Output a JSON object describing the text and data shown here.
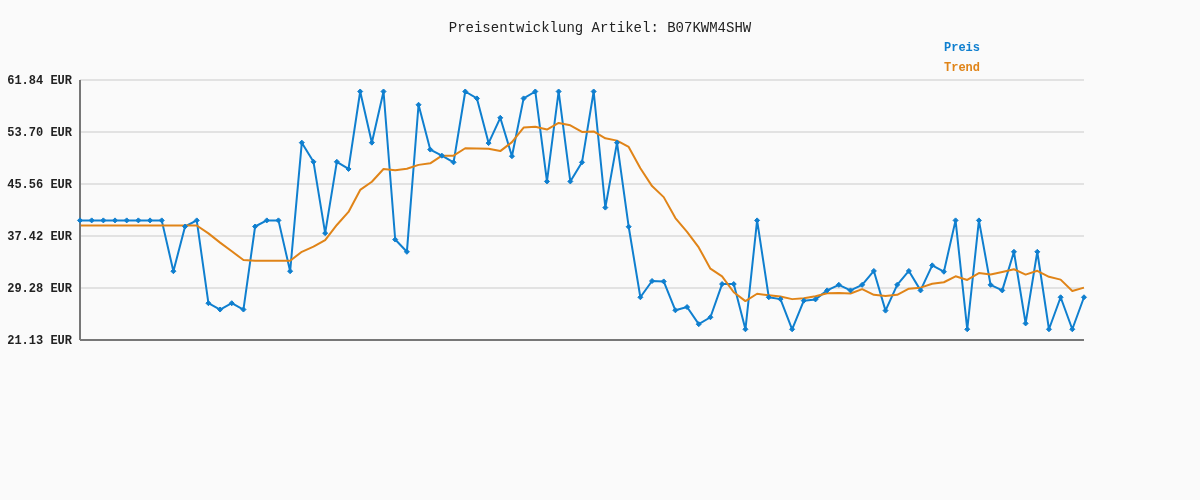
{
  "chart_data": {
    "type": "line",
    "title": "Preisentwicklung Artikel: B07KWM4SHW",
    "categories": [
      null,
      null,
      null,
      null,
      null,
      null,
      null,
      null,
      null,
      null,
      null,
      null,
      null,
      null,
      null,
      null,
      null,
      null,
      null,
      null,
      null,
      null,
      null,
      null,
      null,
      null,
      null,
      null,
      null,
      null,
      null,
      null,
      null,
      null,
      null,
      null,
      null,
      null,
      null,
      null,
      null,
      null,
      null,
      null,
      null,
      null,
      null,
      null,
      null,
      null,
      null,
      null,
      null,
      null,
      null,
      null,
      null,
      null,
      null,
      null,
      null,
      null,
      null,
      null,
      null,
      null,
      null,
      null,
      null,
      null,
      null,
      null,
      null,
      null,
      null,
      null,
      null,
      null,
      null,
      null,
      null,
      null,
      null,
      null,
      null,
      null,
      null
    ],
    "series": [
      {
        "name": "Preis",
        "color": "#0f7fcf",
        "marker": "diamond",
        "values": [
          39.86,
          39.86,
          39.86,
          39.86,
          39.86,
          39.86,
          39.86,
          39.86,
          31.9,
          38.9,
          39.86,
          26.89,
          25.9,
          26.89,
          25.9,
          38.9,
          39.86,
          39.86,
          31.9,
          52.03,
          49.03,
          37.86,
          49.03,
          47.91,
          60.04,
          52.03,
          60.04,
          36.86,
          34.94,
          57.96,
          50.95,
          49.99,
          48.95,
          60.04,
          58.96,
          51.96,
          55.92,
          49.91,
          58.96,
          60.04,
          45.96,
          60.04,
          45.96,
          48.95,
          60.04,
          41.86,
          52.03,
          38.86,
          27.82,
          30.37,
          30.3,
          25.78,
          26.29,
          23.61,
          24.69,
          29.89,
          29.89,
          22.81,
          39.86,
          27.82,
          27.53,
          22.81,
          27.29,
          27.49,
          28.9,
          29.77,
          28.9,
          29.77,
          31.94,
          25.73,
          29.77,
          31.94,
          28.9,
          32.82,
          31.82,
          39.86,
          22.81,
          39.86,
          29.77,
          28.9,
          34.94,
          23.73,
          34.94,
          22.81,
          27.82,
          22.81,
          27.82
        ]
      },
      {
        "name": "Trend",
        "color": "#e08418",
        "marker": "none",
        "values": [
          39.06,
          39.06,
          39.06,
          39.06,
          39.06,
          39.06,
          39.06,
          39.06,
          39.06,
          39.06,
          39.06,
          37.82,
          36.38,
          35.02,
          33.66,
          33.54,
          33.54,
          33.54,
          33.54,
          34.94,
          35.74,
          36.78,
          39.14,
          41.18,
          44.63,
          45.91,
          47.91,
          47.71,
          47.95,
          48.55,
          48.79,
          49.99,
          49.99,
          51.15,
          51.11,
          51.07,
          50.71,
          52.11,
          54.39,
          54.52,
          54.08,
          55.12,
          54.75,
          53.71,
          53.79,
          52.71,
          52.35,
          51.35,
          48.03,
          45.23,
          43.5,
          40.22,
          38.06,
          35.62,
          32.3,
          31.1,
          28.61,
          27.22,
          28.37,
          28.13,
          27.93,
          27.53,
          27.65,
          27.97,
          28.45,
          28.49,
          28.41,
          29.09,
          28.21,
          28.01,
          28.21,
          29.17,
          29.33,
          29.93,
          30.17,
          31.1,
          30.53,
          31.61,
          31.37,
          31.77,
          32.21,
          31.37,
          31.97,
          31.02,
          30.58,
          28.81,
          29.33
        ]
      }
    ],
    "ylim": [
      21.13,
      61.84
    ],
    "yticks": [
      {
        "value": 21.13,
        "label": "21.13 EUR"
      },
      {
        "value": 29.28,
        "label": "29.28 EUR"
      },
      {
        "value": 37.42,
        "label": "37.42 EUR"
      },
      {
        "value": 45.56,
        "label": "45.56 EUR"
      },
      {
        "value": 53.7,
        "label": "53.70 EUR"
      },
      {
        "value": 61.84,
        "label": "61.84 EUR"
      }
    ],
    "grid": "y",
    "legend": "top right",
    "line_style": "solid"
  }
}
